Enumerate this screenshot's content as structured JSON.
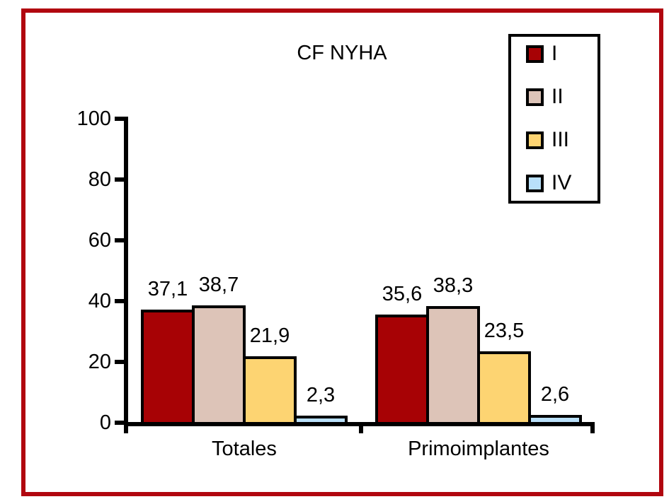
{
  "figure": {
    "frame_border_color": "#b1060f",
    "background_color": "#ffffff",
    "axis_color": "#000000",
    "text_color": "#000000"
  },
  "chart_data": {
    "type": "bar",
    "title": "CF NYHA",
    "categories": [
      "Totales",
      "Primoimplantes"
    ],
    "series": [
      {
        "name": "I",
        "color": "#a70205",
        "values": [
          37.1,
          35.6
        ]
      },
      {
        "name": "II",
        "color": "#ddc4b8",
        "values": [
          38.7,
          38.3
        ]
      },
      {
        "name": "III",
        "color": "#fdd472",
        "values": [
          21.9,
          23.5
        ]
      },
      {
        "name": "IV",
        "color": "#b9e0fa",
        "values": [
          2.3,
          2.6
        ]
      }
    ],
    "value_labels": [
      [
        "37,1",
        "38,7",
        "21,9",
        "2,3"
      ],
      [
        "35,6",
        "38,3",
        "23,5",
        "2,6"
      ]
    ],
    "ylim": [
      0,
      100
    ],
    "yticks": [
      "0",
      "20",
      "40",
      "60",
      "80",
      "100"
    ],
    "grid": false,
    "legend_position": "top-right",
    "legend_entries": [
      "I",
      "II",
      "III",
      "IV"
    ],
    "xlabel": "",
    "ylabel": ""
  }
}
